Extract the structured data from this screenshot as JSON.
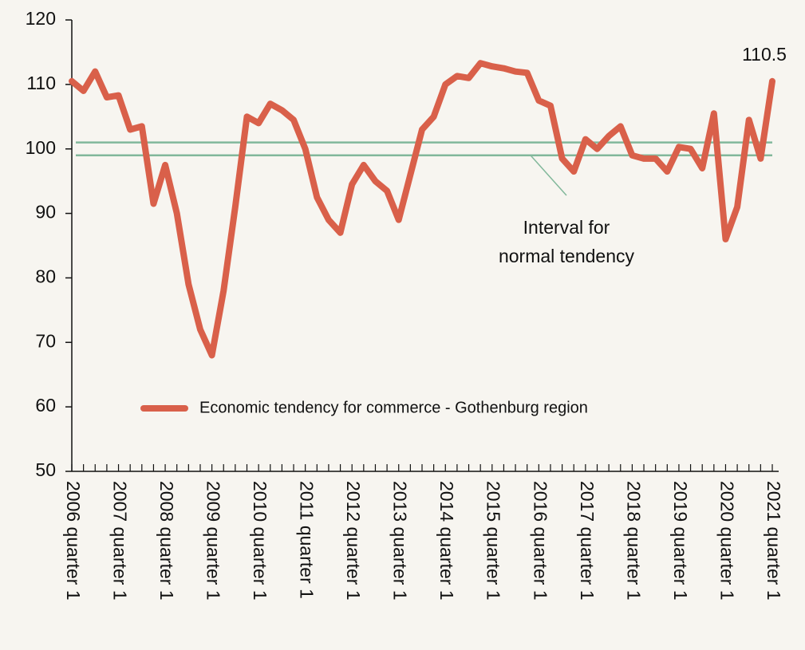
{
  "chart_data": {
    "type": "line",
    "categories": [
      "2006 quarter 1",
      null,
      null,
      null,
      "2007 quarter 1",
      null,
      null,
      null,
      "2008 quarter 1",
      null,
      null,
      null,
      "2009 quarter 1",
      null,
      null,
      null,
      "2010 quarter 1",
      null,
      null,
      null,
      "2011 quarter 1",
      null,
      null,
      null,
      "2012 quarter 1",
      null,
      null,
      null,
      "2013 quarter 1",
      null,
      null,
      null,
      "2014 quarter 1",
      null,
      null,
      null,
      "2015 quarter 1",
      null,
      null,
      null,
      "2016 quarter 1",
      null,
      null,
      null,
      "2017 quarter 1",
      null,
      null,
      null,
      "2018 quarter 1",
      null,
      null,
      null,
      "2019 quarter 1",
      null,
      null,
      null,
      "2020 quarter 1",
      null,
      null,
      null,
      "2021 quarter 1"
    ],
    "series": [
      {
        "name": "Economic tendency for commerce - Gothenburg region",
        "color": "#d9604a",
        "values": [
          110.5,
          109,
          112,
          108,
          108.3,
          103,
          103.5,
          91.5,
          97.5,
          90,
          79,
          72,
          68,
          78,
          91,
          105,
          104,
          107,
          106,
          104.5,
          100,
          92.5,
          89,
          87,
          94.5,
          97.5,
          95,
          93.5,
          89,
          96,
          103,
          105,
          110,
          111.3,
          111,
          113.3,
          112.8,
          112.5,
          112,
          111.8,
          107.5,
          106.7,
          98.5,
          96.5,
          101.5,
          100,
          102,
          103.5,
          99,
          98.5,
          98.5,
          96.5,
          100.3,
          100,
          97,
          105.5,
          86,
          91,
          104.5,
          98.5,
          110.5
        ]
      }
    ],
    "reference_lines": {
      "values": [
        101,
        99
      ],
      "color": "#82b89b"
    },
    "annotation": [
      "Interval for",
      "normal tendency"
    ],
    "ylim": [
      50,
      120
    ],
    "yticks": [
      50,
      60,
      70,
      80,
      90,
      100,
      110,
      120
    ],
    "legend": "bottom",
    "grid": false
  }
}
